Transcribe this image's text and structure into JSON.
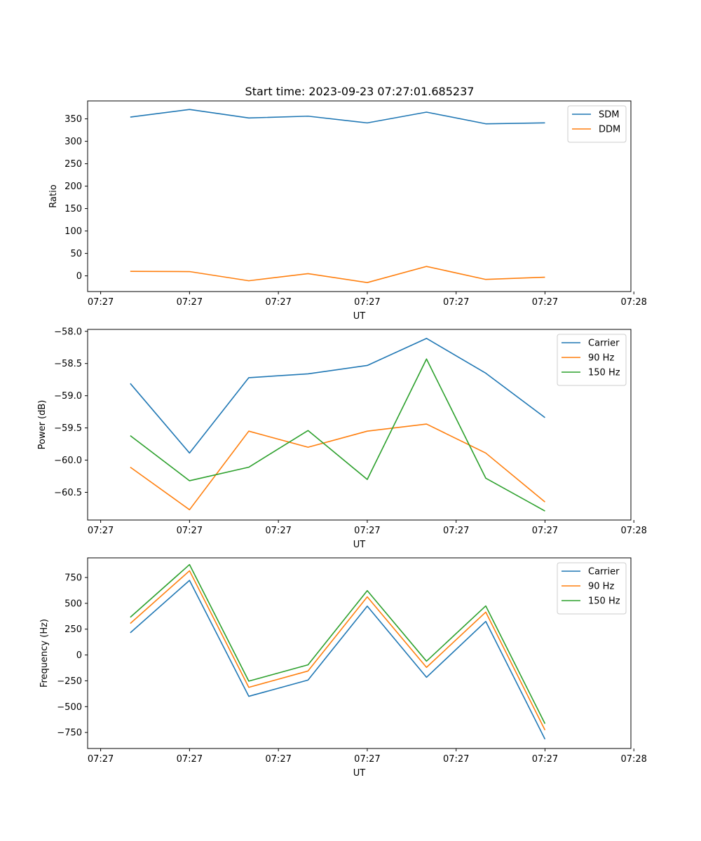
{
  "title": "Start time: 2023-09-23 07:27:01.685237",
  "colors": {
    "blue": "#1f77b4",
    "orange": "#ff7f0e",
    "green": "#2ca02c"
  },
  "chart_data": [
    {
      "type": "line",
      "ylabel": "Ratio",
      "xlabel": "UT",
      "xlim": [
        -0.22,
        8.95
      ],
      "x": [
        0.5,
        1.5,
        2.5,
        3.5,
        4.5,
        5.5,
        6.5,
        7.5
      ],
      "xticks": [
        0,
        1.5,
        3,
        4.5,
        6,
        7.5,
        9
      ],
      "xtick_labels": [
        "07:27",
        "07:27",
        "07:27",
        "07:27",
        "07:27",
        "07:27",
        "07:28"
      ],
      "ylim": [
        -35,
        390
      ],
      "yticks": [
        0,
        50,
        100,
        150,
        200,
        250,
        300,
        350
      ],
      "ytick_labels": [
        "0",
        "50",
        "100",
        "150",
        "200",
        "250",
        "300",
        "350"
      ],
      "legend_position": "top-right",
      "series": [
        {
          "name": "SDM",
          "color": "#1f77b4",
          "values": [
            354,
            371,
            352,
            356,
            341,
            365,
            339,
            341
          ]
        },
        {
          "name": "DDM",
          "color": "#ff7f0e",
          "values": [
            10,
            9.5,
            -11,
            5,
            -15,
            21,
            -8,
            -3
          ]
        }
      ]
    },
    {
      "type": "line",
      "ylabel": "Power (dB)",
      "xlabel": "UT",
      "xlim": [
        -0.22,
        8.95
      ],
      "x": [
        0.5,
        1.5,
        2.5,
        3.5,
        4.5,
        5.5,
        6.5,
        7.5
      ],
      "xticks": [
        0,
        1.5,
        3,
        4.5,
        6,
        7.5,
        9
      ],
      "xtick_labels": [
        "07:27",
        "07:27",
        "07:27",
        "07:27",
        "07:27",
        "07:27",
        "07:28"
      ],
      "ylim": [
        -60.93,
        -57.97
      ],
      "yticks": [
        -58.0,
        -58.5,
        -59.0,
        -59.5,
        -60.0,
        -60.5
      ],
      "ytick_labels": [
        "−58.0",
        "−58.5",
        "−59.0",
        "−59.5",
        "−60.0",
        "−60.5"
      ],
      "legend_position": "top-right",
      "series": [
        {
          "name": "Carrier",
          "color": "#1f77b4",
          "values": [
            -58.81,
            -59.89,
            -58.72,
            -58.66,
            -58.53,
            -58.11,
            -58.65,
            -59.34
          ]
        },
        {
          "name": "90 Hz",
          "color": "#ff7f0e",
          "values": [
            -60.11,
            -60.77,
            -59.55,
            -59.8,
            -59.55,
            -59.44,
            -59.89,
            -60.65
          ]
        },
        {
          "name": "150 Hz",
          "color": "#2ca02c",
          "values": [
            -59.62,
            -60.32,
            -60.11,
            -59.54,
            -60.3,
            -58.43,
            -60.28,
            -60.79
          ]
        }
      ]
    },
    {
      "type": "line",
      "ylabel": "Frequency (Hz)",
      "xlabel": "UT",
      "xlim": [
        -0.22,
        8.95
      ],
      "x": [
        0.5,
        1.5,
        2.5,
        3.5,
        4.5,
        5.5,
        6.5,
        7.5
      ],
      "xticks": [
        0,
        1.5,
        3,
        4.5,
        6,
        7.5,
        9
      ],
      "xtick_labels": [
        "07:27",
        "07:27",
        "07:27",
        "07:27",
        "07:27",
        "07:27",
        "07:28"
      ],
      "ylim": [
        -905,
        940
      ],
      "yticks": [
        750,
        500,
        250,
        0,
        -250,
        -500,
        -750
      ],
      "ytick_labels": [
        "750",
        "500",
        "250",
        "0",
        "−250",
        "−500",
        "−750"
      ],
      "legend_position": "top-right",
      "series": [
        {
          "name": "Carrier",
          "color": "#1f77b4",
          "values": [
            215,
            722,
            -400,
            -243,
            473,
            -216,
            325,
            -815
          ]
        },
        {
          "name": "90 Hz",
          "color": "#ff7f0e",
          "values": [
            305,
            815,
            -313,
            -155,
            563,
            -120,
            415,
            -727
          ]
        },
        {
          "name": "150 Hz",
          "color": "#2ca02c",
          "values": [
            365,
            875,
            -253,
            -95,
            623,
            -60,
            475,
            -665
          ]
        }
      ]
    }
  ]
}
